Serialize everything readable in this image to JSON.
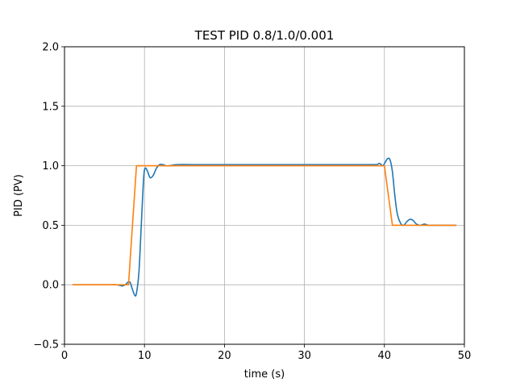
{
  "chart_data": {
    "type": "line",
    "title": "TEST PID 0.8/1.0/0.001",
    "xlabel": "time (s)",
    "ylabel": "PID (PV)",
    "xlim": [
      0,
      50
    ],
    "ylim": [
      -0.5,
      2.0
    ],
    "xticks": [
      0,
      10,
      20,
      30,
      40,
      50
    ],
    "xtick_labels": [
      "0",
      "10",
      "20",
      "30",
      "40",
      "50"
    ],
    "yticks": [
      -0.5,
      0.0,
      0.5,
      1.0,
      1.5,
      2.0
    ],
    "ytick_labels": [
      "−0.5",
      "0.0",
      "0.5",
      "1.0",
      "1.5",
      "2.0"
    ],
    "grid": true,
    "series": [
      {
        "color": "#1f77b4",
        "x": [
          1,
          5,
          6.5,
          7.2,
          7.6,
          7.9,
          8.2,
          8.5,
          8.8,
          9.0,
          9.3,
          9.6,
          9.9,
          10.1,
          10.4,
          10.7,
          11.1,
          11.5,
          11.9,
          12.3,
          12.7,
          13.1,
          14,
          16,
          20,
          30,
          38,
          39,
          39.4,
          39.8,
          40.1,
          40.4,
          40.7,
          41.0,
          41.3,
          41.6,
          42.0,
          42.4,
          42.8,
          43.2,
          43.6,
          44.0,
          44.5,
          45.0,
          45.5,
          46.5,
          49
        ],
        "y": [
          0.0,
          0.0,
          0.0,
          -0.01,
          0.0,
          0.02,
          0.02,
          -0.04,
          -0.09,
          -0.07,
          0.1,
          0.5,
          0.9,
          0.98,
          0.95,
          0.9,
          0.92,
          0.98,
          1.01,
          1.01,
          1.0,
          1.0,
          1.01,
          1.01,
          1.01,
          1.01,
          1.01,
          1.01,
          1.02,
          1.0,
          1.03,
          1.06,
          1.05,
          0.95,
          0.75,
          0.6,
          0.52,
          0.5,
          0.53,
          0.55,
          0.54,
          0.51,
          0.5,
          0.51,
          0.5,
          0.5,
          0.5
        ]
      },
      {
        "color": "#ff7f0e",
        "x": [
          1,
          8,
          9,
          40,
          41,
          49
        ],
        "y": [
          0.0,
          0.0,
          1.0,
          1.0,
          0.5,
          0.5
        ]
      }
    ]
  }
}
